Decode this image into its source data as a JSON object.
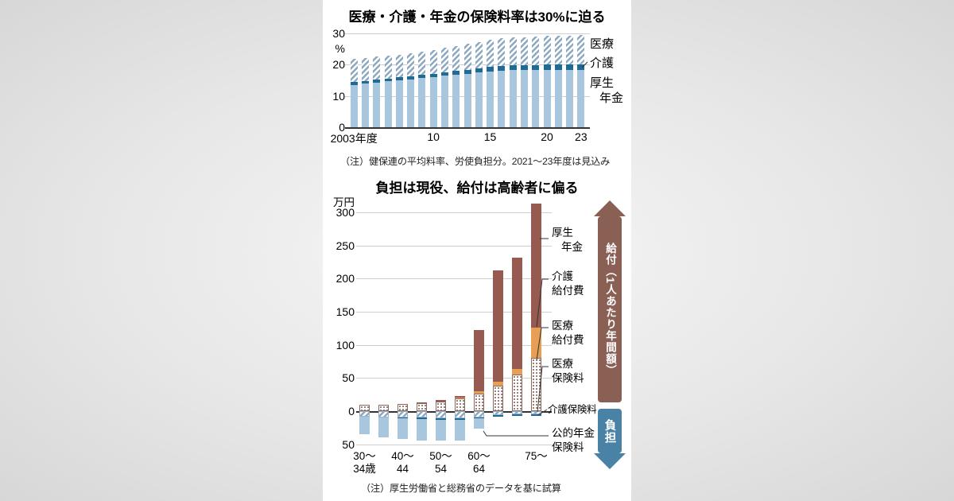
{
  "colors": {
    "light_blue": "#a9c6df",
    "dark_blue": "#1e6b96",
    "hatch_blue": "#8ca8c2",
    "brown": "#965a50",
    "orange": "#e79f56",
    "dot_brown": "#7a544a",
    "banner_benefit_brown": "#8a6055",
    "banner_burden_blue": "#4a82a6"
  },
  "chart_data": [
    {
      "type": "bar",
      "stacked": true,
      "title": "医療・介護・年金の保険料率は30%に迫る",
      "unit_label": "%",
      "ylim": [
        0,
        30
      ],
      "y_ticks": [
        30,
        20,
        10,
        0
      ],
      "years": [
        2003,
        2004,
        2005,
        2006,
        2007,
        2008,
        2009,
        2010,
        2011,
        2012,
        2013,
        2014,
        2015,
        2016,
        2017,
        2018,
        2019,
        2020,
        2021,
        2022,
        2023
      ],
      "x_ticks": [
        {
          "label": "2003年度",
          "index": 0
        },
        {
          "label": "10",
          "index": 7
        },
        {
          "label": "15",
          "index": 12
        },
        {
          "label": "20",
          "index": 17
        },
        {
          "label": "23",
          "index": 20
        }
      ],
      "series": [
        {
          "key": "pension",
          "name": "厚生年金",
          "color": "#a9c6df",
          "values": [
            13.58,
            13.93,
            14.29,
            14.64,
            15.0,
            15.35,
            15.7,
            16.06,
            16.41,
            16.77,
            17.12,
            17.47,
            17.83,
            18.18,
            18.3,
            18.3,
            18.3,
            18.3,
            18.3,
            18.3,
            18.3
          ]
        },
        {
          "key": "care",
          "name": "介護",
          "color": "#1e6b96",
          "values": [
            0.87,
            0.89,
            0.91,
            0.92,
            0.94,
            0.96,
            1.0,
            1.06,
            1.13,
            1.21,
            1.3,
            1.36,
            1.4,
            1.45,
            1.5,
            1.56,
            1.6,
            1.73,
            1.78,
            1.8,
            1.82
          ]
        },
        {
          "key": "medical",
          "name": "医療",
          "pattern": "diagonal-hatch",
          "color": "#8ca8c2",
          "values": [
            7.45,
            7.4,
            7.38,
            7.32,
            7.3,
            7.33,
            7.45,
            7.62,
            7.79,
            8.06,
            8.29,
            8.49,
            8.68,
            8.8,
            8.88,
            9.0,
            9.1,
            9.17,
            9.21,
            9.25,
            9.28
          ]
        }
      ],
      "series_labels": {
        "medical": "医療",
        "care": "介護",
        "pension_line1": "厚生",
        "pension_line2": "年金"
      },
      "note": "（注）健保連の平均料率、労使負担分。2021～23年度は見込み"
    },
    {
      "type": "bar",
      "stacked": true,
      "title": "負担は現役、給付は高齢者に偏る",
      "unit_label": "万円",
      "ylim": [
        -50,
        300
      ],
      "y_ticks": [
        {
          "value": 300,
          "label": "300"
        },
        {
          "value": 250,
          "label": "250"
        },
        {
          "value": 200,
          "label": "200"
        },
        {
          "value": 150,
          "label": "150"
        },
        {
          "value": 100,
          "label": "100"
        },
        {
          "value": 50,
          "label": "50"
        },
        {
          "value": 0,
          "label": "0"
        },
        {
          "value": -50,
          "label": "50"
        }
      ],
      "categories": [
        "30～34歳",
        "35～39",
        "40～44",
        "45～49",
        "50～54",
        "55～59",
        "60～64",
        "65～69",
        "70～74",
        "75～"
      ],
      "x_ticks": [
        {
          "index": 0,
          "lines": [
            "30～",
            "34歳"
          ]
        },
        {
          "index": 2,
          "lines": [
            "40～",
            "44"
          ]
        },
        {
          "index": 4,
          "lines": [
            "50～",
            "54"
          ]
        },
        {
          "index": 6,
          "lines": [
            "60～",
            "64"
          ]
        },
        {
          "index": 9,
          "lines": [
            "75～"
          ]
        }
      ],
      "series": [
        {
          "key": "medical_benefit",
          "name": "医療給付費",
          "side": "benefit",
          "pattern": "dots",
          "values": [
            10,
            10,
            11,
            12,
            15,
            19,
            27,
            38,
            55,
            80
          ]
        },
        {
          "key": "care_benefit",
          "name": "介護給付費",
          "side": "benefit",
          "color": "#e79f56",
          "values": [
            0,
            0,
            0,
            0,
            0,
            1,
            3,
            6,
            9,
            46
          ]
        },
        {
          "key": "pension_benefit",
          "name": "厚生年金",
          "side": "benefit",
          "color": "#965a50",
          "values": [
            0,
            0,
            0,
            1,
            2,
            3,
            92,
            168,
            168,
            187
          ]
        },
        {
          "key": "medical_premium",
          "name": "医療保険料",
          "side": "burden",
          "pattern": "diagonal-hatch",
          "values": [
            8,
            9,
            10,
            10,
            11,
            11,
            9,
            6,
            5,
            5
          ]
        },
        {
          "key": "care_premium",
          "name": "介護保険料",
          "side": "burden",
          "color": "#1e6b96",
          "values": [
            0,
            0,
            1,
            2,
            2,
            2,
            2,
            2,
            2,
            2
          ]
        },
        {
          "key": "pension_premium",
          "name": "公的年金保険料",
          "side": "burden",
          "color": "#a9c6df",
          "values": [
            27,
            31,
            31,
            32,
            32,
            31,
            15,
            0,
            0,
            0
          ]
        }
      ],
      "annotations": [
        {
          "lines": [
            "厚生",
            "年金"
          ]
        },
        {
          "lines": [
            "介護",
            "給付費"
          ]
        },
        {
          "lines": [
            "医療",
            "給付費"
          ]
        },
        {
          "lines": [
            "医療",
            "保険料"
          ]
        },
        {
          "lines": [
            "介護保険料"
          ]
        },
        {
          "lines": [
            "公的年金",
            "保険料"
          ]
        }
      ],
      "banners": {
        "benefit": "給付（1人あたり年間額）",
        "burden": "負担"
      },
      "note": "（注）厚生労働省と総務省のデータを基に試算"
    }
  ]
}
